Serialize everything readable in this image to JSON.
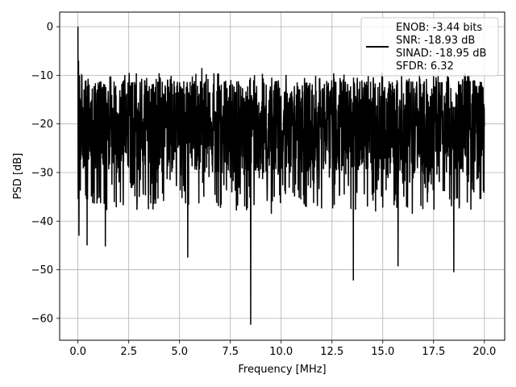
{
  "chart_data": {
    "type": "line",
    "title": "",
    "xlabel": "Frequency [MHz]",
    "ylabel": "PSD [dB]",
    "xlim": [
      -0.9,
      21.0
    ],
    "ylim": [
      -64.5,
      3.0
    ],
    "xticks": [
      0.0,
      2.5,
      5.0,
      7.5,
      10.0,
      12.5,
      15.0,
      17.5,
      20.0
    ],
    "xtick_labels": [
      "0.0",
      "2.5",
      "5.0",
      "7.5",
      "10.0",
      "12.5",
      "15.0",
      "17.5",
      "20.0"
    ],
    "yticks": [
      0,
      -10,
      -20,
      -30,
      -40,
      -50,
      -60
    ],
    "ytick_labels": [
      "0",
      "−10",
      "−20",
      "−30",
      "−40",
      "−50",
      "−60"
    ],
    "grid": true,
    "legend_position": "top-right",
    "series": [
      {
        "color": "#000000",
        "x_range": [
          0.0,
          20.0
        ],
        "num_points": 2048,
        "noise_floor_db": -21.5,
        "upper_envelope_db": -10.5,
        "peak_points": [
          [
            0.0,
            0.0
          ],
          [
            0.03,
            -7.0
          ],
          [
            0.08,
            -10.0
          ],
          [
            6.1,
            -8.5
          ],
          [
            8.5,
            -61.3
          ],
          [
            5.4,
            -47.5
          ],
          [
            13.55,
            -52.2
          ],
          [
            15.75,
            -49.3
          ],
          [
            18.5,
            -50.5
          ],
          [
            9.52,
            -38.5
          ],
          [
            14.65,
            -38.0
          ],
          [
            16.45,
            -38.5
          ],
          [
            0.05,
            -43.0
          ],
          [
            0.45,
            -45.0
          ],
          [
            1.35,
            -45.2
          ]
        ]
      }
    ],
    "legend": {
      "lines": [
        "ENOB: -3.44 bits",
        "SNR: -18.93 dB",
        "SINAD: -18.95 dB",
        "SFDR: 6.32"
      ],
      "line_color": "#000000"
    },
    "colors": {
      "grid": "#b0b0b0",
      "axes": "#000000",
      "background": "#ffffff"
    }
  }
}
